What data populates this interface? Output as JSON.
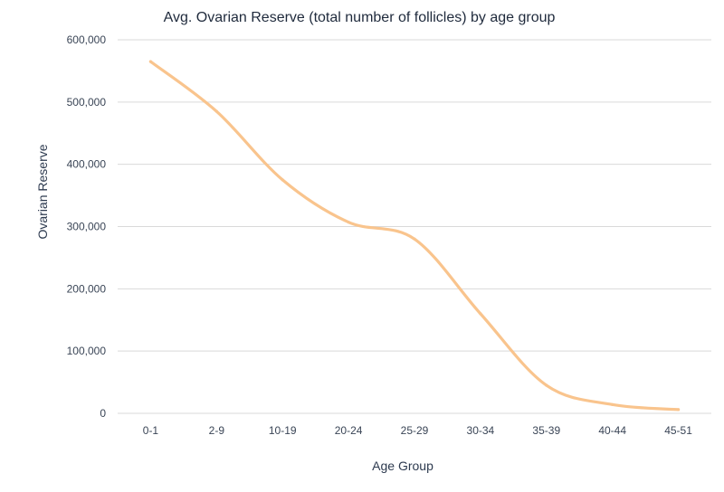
{
  "chart_data": {
    "type": "line",
    "title": "Avg. Ovarian Reserve (total number of follicles) by age group",
    "xlabel": "Age Group",
    "ylabel": "Ovarian Reserve",
    "categories": [
      "0-1",
      "2-9",
      "10-19",
      "20-24",
      "25-29",
      "30-34",
      "35-39",
      "40-44",
      "45-51"
    ],
    "series": [
      {
        "name": "Ovarian Reserve",
        "values": [
          565000,
          485000,
          375000,
          307000,
          280000,
          160000,
          45000,
          14000,
          6000
        ],
        "color": "#f9c48d"
      }
    ],
    "ylim": [
      0,
      600000
    ],
    "yticks": [
      0,
      100000,
      200000,
      300000,
      400000,
      500000,
      600000
    ],
    "ytick_labels": [
      "0",
      "100,000",
      "200,000",
      "300,000",
      "400,000",
      "500,000",
      "600,000"
    ],
    "grid": true,
    "legend": "none"
  }
}
